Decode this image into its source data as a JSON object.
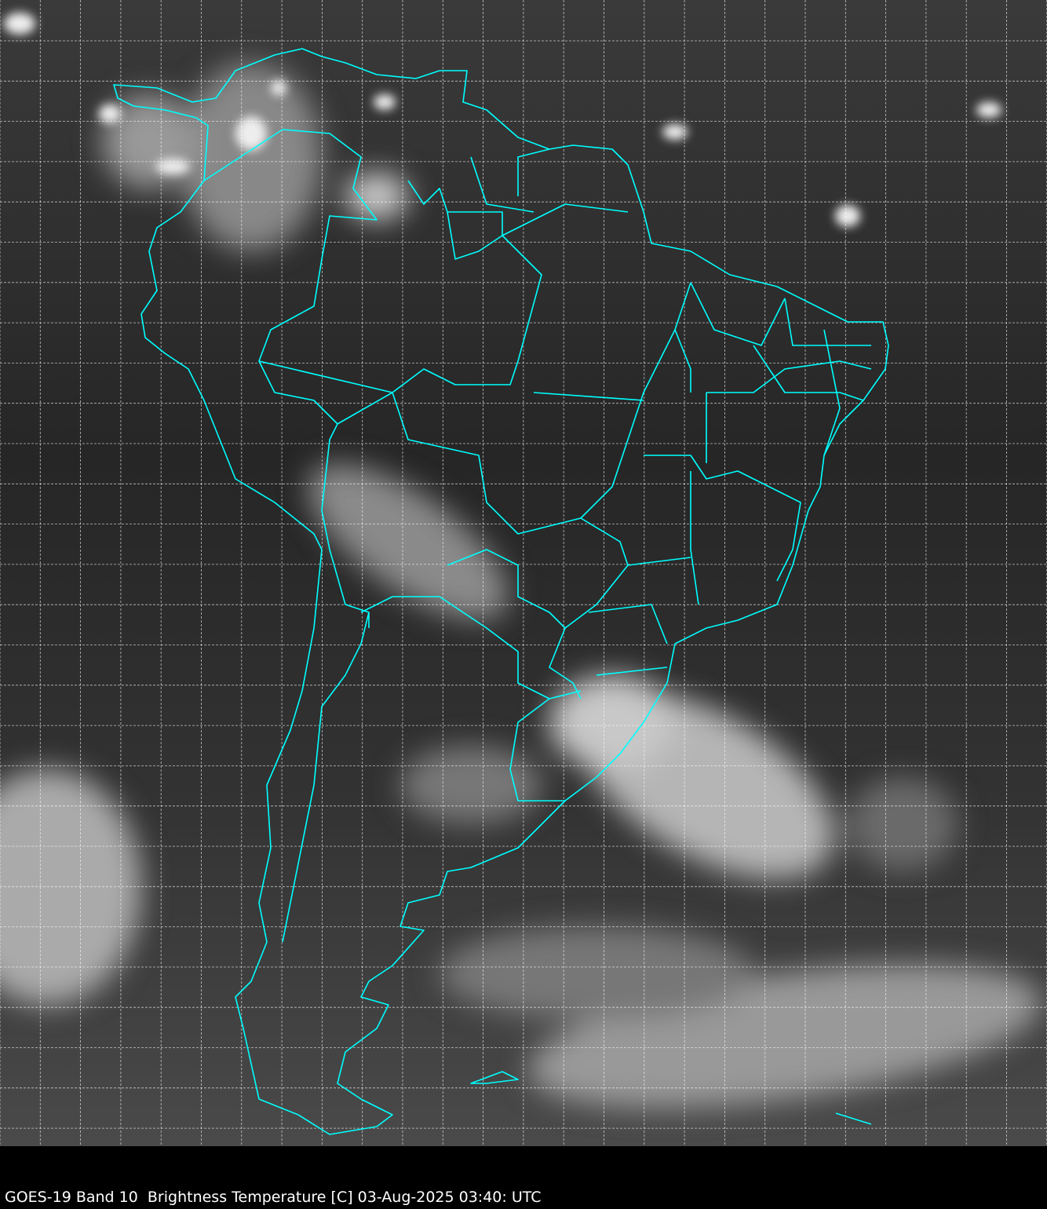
{
  "caption": "GOES-19 Band 10  Brightness Temperature [C] 03-Aug-2025 03:40: UTC",
  "colors": {
    "border": "#00ffff",
    "grid": "#ffffff",
    "background": "#000000"
  },
  "map": {
    "grid": true,
    "borders": "country and state boundaries"
  }
}
